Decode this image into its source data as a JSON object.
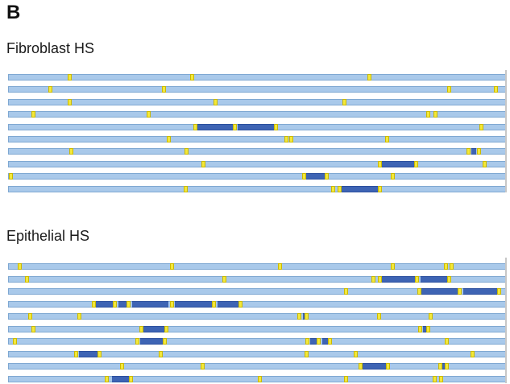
{
  "panel_label": "B",
  "sections": [
    {
      "title": "Fibroblast HS",
      "tracks": [
        {
          "segments": [],
          "marks": [
            0.121,
            0.368,
            0.724
          ]
        },
        {
          "segments": [],
          "marks": [
            0.083,
            0.31,
            0.883,
            0.977
          ]
        },
        {
          "segments": [],
          "marks": [
            0.121,
            0.414,
            0.673
          ]
        },
        {
          "segments": [],
          "marks": [
            0.049,
            0.28,
            0.842,
            0.856
          ]
        },
        {
          "segments": [
            [
              0.373,
              0.453
            ],
            [
              0.459,
              0.536
            ]
          ],
          "marks": [
            0.373,
            0.453,
            0.536,
            0.948
          ]
        },
        {
          "segments": [],
          "marks": [
            0.32,
            0.556,
            0.567,
            0.759
          ]
        },
        {
          "segments": [
            [
              0.928,
              0.938
            ]
          ],
          "marks": [
            0.125,
            0.356,
            0.922,
            0.943
          ]
        },
        {
          "segments": [
            [
              0.748,
              0.817
            ]
          ],
          "marks": [
            0.39,
            0.745,
            0.817,
            0.955
          ]
        },
        {
          "segments": [
            [
              0.597,
              0.638
            ]
          ],
          "marks": [
            0.004,
            0.592,
            0.638,
            0.771
          ]
        },
        {
          "segments": [
            [
              0.669,
              0.745
            ]
          ],
          "marks": [
            0.354,
            0.651,
            0.664,
            0.745
          ]
        }
      ]
    },
    {
      "title": "Epithelial HS",
      "tracks": [
        {
          "segments": [],
          "marks": [
            0.021,
            0.327,
            0.544,
            0.77,
            0.877,
            0.888
          ]
        },
        {
          "segments": [
            [
              0.747,
              0.819
            ],
            [
              0.827,
              0.883
            ]
          ],
          "marks": [
            0.035,
            0.432,
            0.731,
            0.744,
            0.819,
            0.883
          ]
        },
        {
          "segments": [
            [
              0.827,
              0.905
            ],
            [
              0.913,
              0.98
            ]
          ],
          "marks": [
            0.676,
            0.824,
            0.905,
            0.984
          ]
        },
        {
          "segments": [
            [
              0.174,
              0.212
            ],
            [
              0.22,
              0.24
            ],
            [
              0.248,
              0.321
            ],
            [
              0.333,
              0.411
            ],
            [
              0.419,
              0.464
            ]
          ],
          "marks": [
            0.17,
            0.212,
            0.24,
            0.327,
            0.411,
            0.464
          ]
        },
        {
          "segments": [
            [
              0.59,
              0.595
            ]
          ],
          "marks": [
            0.042,
            0.141,
            0.583,
            0.597,
            0.742,
            0.846
          ]
        },
        {
          "segments": [
            [
              0.271,
              0.316
            ],
            [
              0.831,
              0.84
            ]
          ],
          "marks": [
            0.049,
            0.266,
            0.316,
            0.825,
            0.841
          ]
        },
        {
          "segments": [
            [
              0.263,
              0.312
            ],
            [
              0.605,
              0.621
            ],
            [
              0.63,
              0.644
            ]
          ],
          "marks": [
            0.011,
            0.257,
            0.312,
            0.599,
            0.621,
            0.644,
            0.878
          ]
        },
        {
          "segments": [
            [
              0.14,
              0.181
            ]
          ],
          "marks": [
            0.134,
            0.181,
            0.305,
            0.597,
            0.695,
            0.93
          ]
        },
        {
          "segments": [
            [
              0.711,
              0.758
            ],
            [
              0.87,
              0.877
            ]
          ],
          "marks": [
            0.227,
            0.388,
            0.705,
            0.76,
            0.865,
            0.879
          ]
        },
        {
          "segments": [
            [
              0.207,
              0.244
            ]
          ],
          "marks": [
            0.196,
            0.244,
            0.504,
            0.676,
            0.855,
            0.868
          ]
        }
      ]
    }
  ],
  "colors": {
    "track": "#a9c9ea",
    "segment": "#3e64b4",
    "mark": "#f3e83a"
  }
}
